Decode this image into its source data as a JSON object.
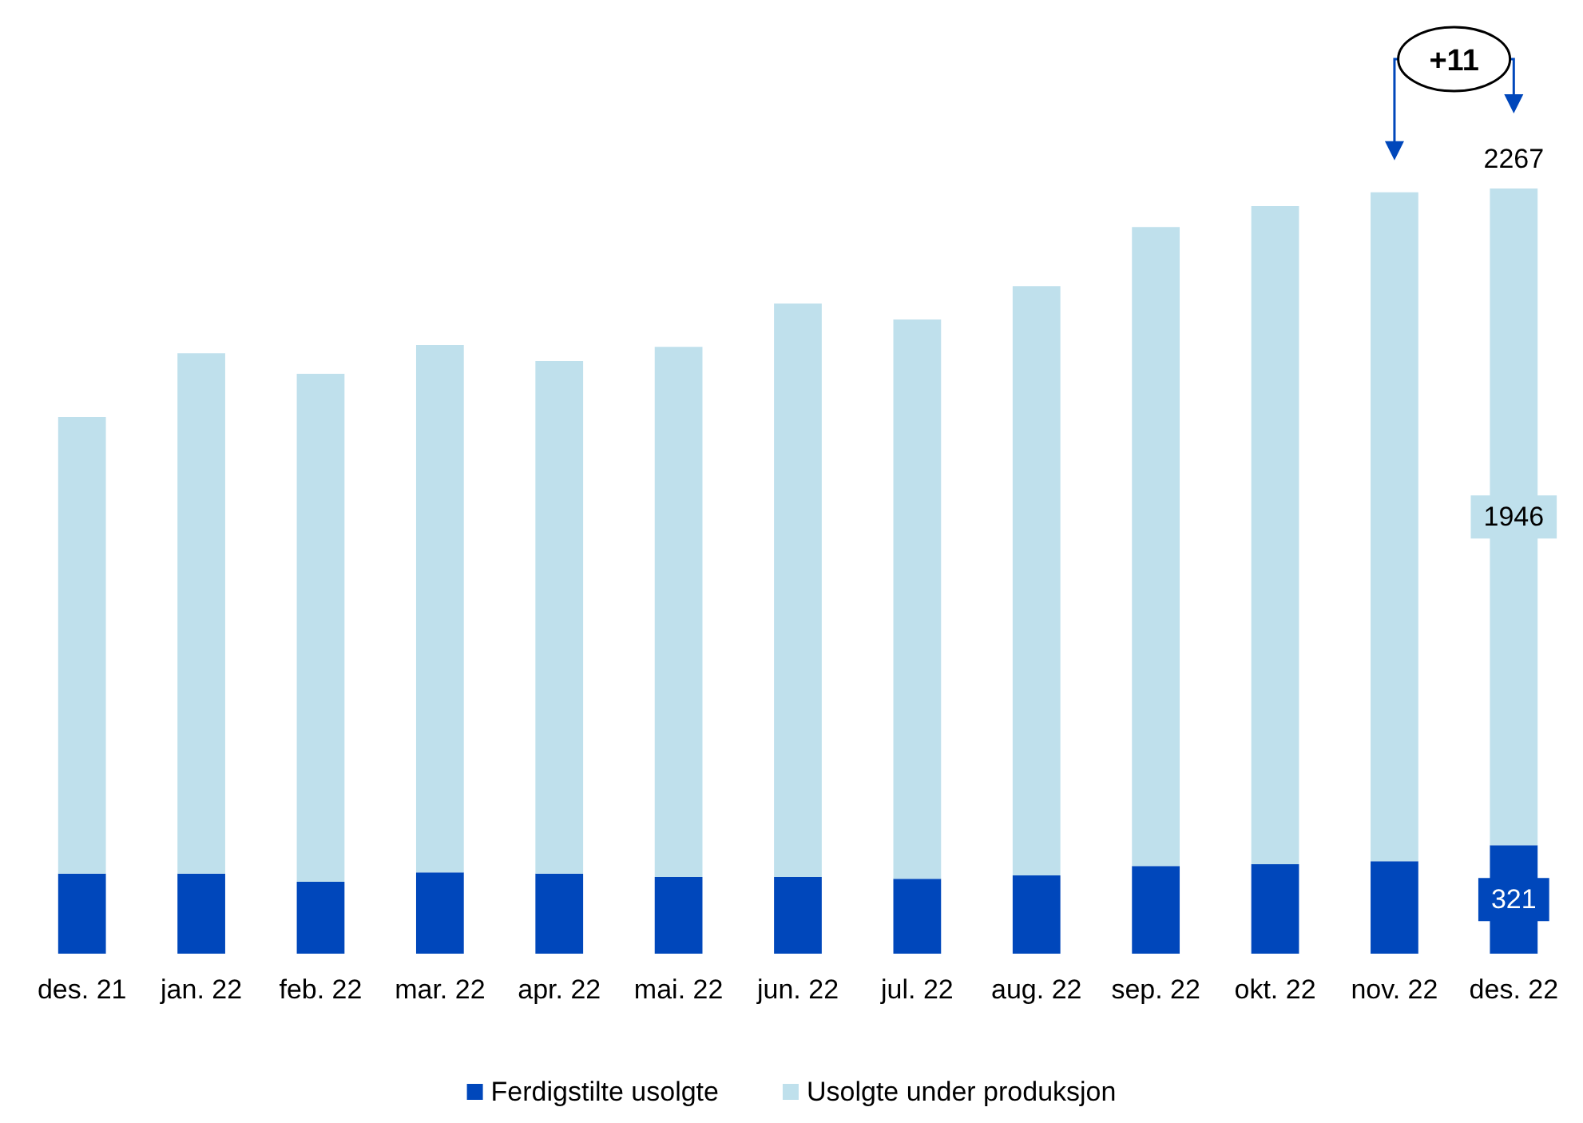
{
  "chart_data": {
    "type": "bar",
    "stacked": true,
    "legend": "bottom",
    "categories": [
      "des. 21",
      "jan. 22",
      "feb. 22",
      "mar. 22",
      "apr. 22",
      "mai. 22",
      "jun. 22",
      "jul. 22",
      "aug. 22",
      "sep. 22",
      "okt. 22",
      "nov. 22",
      "des. 22"
    ],
    "series": [
      {
        "name": "Ferdigstilte usolgte",
        "color": "#0047bb",
        "values": [
          237,
          237,
          213,
          241,
          237,
          227,
          227,
          222,
          232,
          260,
          265,
          274,
          321
        ],
        "value_labels": [
          null,
          null,
          null,
          null,
          null,
          null,
          null,
          null,
          null,
          null,
          null,
          null,
          "321"
        ]
      },
      {
        "name": "Usolgte under produksjon",
        "color": "#bfe0ec",
        "values": [
          1353,
          1542,
          1505,
          1562,
          1519,
          1571,
          1699,
          1657,
          1746,
          1893,
          1950,
          1982,
          1946
        ],
        "value_labels": [
          null,
          null,
          null,
          null,
          null,
          null,
          null,
          null,
          null,
          null,
          null,
          null,
          "1946"
        ]
      }
    ],
    "totals": [
      null,
      null,
      null,
      null,
      null,
      null,
      null,
      null,
      null,
      null,
      null,
      null,
      "2267"
    ],
    "annotations": [
      "+11"
    ]
  }
}
